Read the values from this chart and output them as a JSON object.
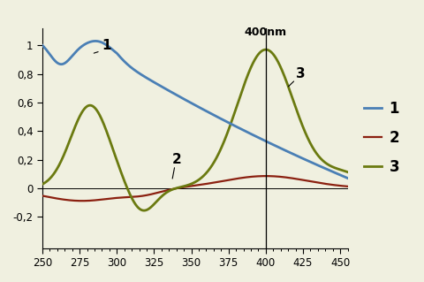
{
  "xlim": [
    250,
    455
  ],
  "ylim": [
    -0.42,
    1.12
  ],
  "xlabel_ticks": [
    250,
    275,
    300,
    325,
    350,
    375,
    400,
    425,
    450
  ],
  "ylabel_ticks": [
    -0.2,
    0,
    0.2,
    0.4,
    0.6,
    0.8,
    1
  ],
  "vline_x": 400,
  "vline_label": "400nm",
  "color1": "#4a7fb5",
  "color2": "#8b2010",
  "color3": "#6b7a10",
  "bg_color": "#f0f0e0"
}
